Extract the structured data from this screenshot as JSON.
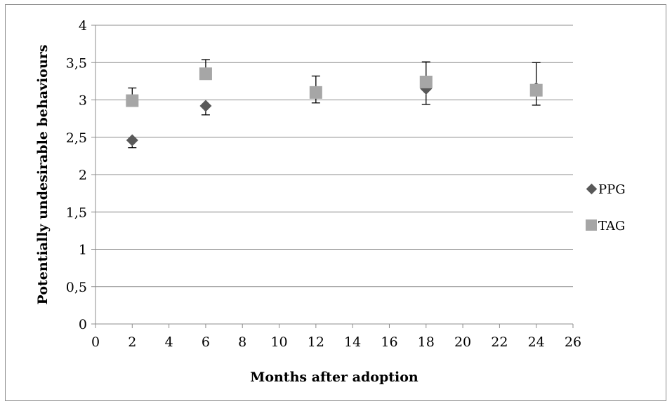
{
  "chart_data": {
    "type": "scatter",
    "xlabel": "Months after adoption",
    "ylabel": "Potentially undesirable behaviours",
    "xlim": [
      0,
      26
    ],
    "ylim": [
      0,
      4
    ],
    "x_ticks": [
      "0",
      "2",
      "4",
      "6",
      "8",
      "10",
      "12",
      "14",
      "16",
      "18",
      "20",
      "22",
      "24",
      "26"
    ],
    "y_ticks": [
      "0",
      "0,5",
      "1",
      "1,5",
      "2",
      "2,5",
      "3",
      "3,5",
      "4"
    ],
    "grid": "horizontal",
    "legend_position": "right",
    "series": [
      {
        "name": "PPG",
        "marker": "diamond",
        "color": "#595959",
        "points": [
          {
            "x": 2,
            "y": 2.46,
            "err_low": 2.36
          },
          {
            "x": 6,
            "y": 2.92,
            "err_low": 2.8
          },
          {
            "x": 12,
            "y": 3.1,
            "err_low": 2.96
          },
          {
            "x": 18,
            "y": 3.15,
            "err_low": 2.94
          },
          {
            "x": 24,
            "y": 3.16,
            "err_low": 2.93
          }
        ]
      },
      {
        "name": "TAG",
        "marker": "square",
        "color": "#a6a6a6",
        "points": [
          {
            "x": 2,
            "y": 2.99,
            "err_high": 3.16
          },
          {
            "x": 6,
            "y": 3.35,
            "err_high": 3.54
          },
          {
            "x": 12,
            "y": 3.1,
            "err_high": 3.32
          },
          {
            "x": 18,
            "y": 3.24,
            "err_high": 3.51
          },
          {
            "x": 24,
            "y": 3.13,
            "err_high": 3.5
          }
        ]
      }
    ]
  }
}
